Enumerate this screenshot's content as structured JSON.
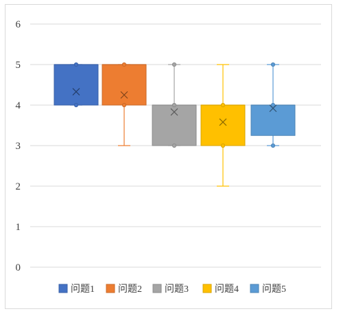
{
  "chart_data": {
    "type": "box",
    "title": "",
    "xlabel": "",
    "ylabel": "",
    "ylim": [
      0,
      6
    ],
    "yticks": [
      "0",
      "1",
      "2",
      "3",
      "4",
      "5",
      "6"
    ],
    "grid": true,
    "legend_position": "bottom",
    "series": [
      {
        "name": "问题1",
        "color": "#4472C4",
        "min": 4,
        "q1": 4,
        "median": 5,
        "q3": 5,
        "max": 5,
        "mean": 4.33,
        "points": [
          4,
          5
        ]
      },
      {
        "name": "问题2",
        "color": "#ED7D31",
        "min": 3,
        "q1": 4,
        "median": 5,
        "q3": 5,
        "max": 5,
        "mean": 4.25,
        "points": [
          4,
          5
        ]
      },
      {
        "name": "问题3",
        "color": "#A5A5A5",
        "min": 3,
        "q1": 3,
        "median": 4,
        "q3": 4,
        "max": 5,
        "mean": 3.83,
        "points": [
          3,
          4,
          5
        ]
      },
      {
        "name": "问题4",
        "color": "#FFC000",
        "min": 2,
        "q1": 3,
        "median": 4,
        "q3": 4,
        "max": 5,
        "mean": 3.58,
        "points": [
          3,
          4
        ]
      },
      {
        "name": "问题5",
        "color": "#5B9BD5",
        "min": 3,
        "q1": 3.25,
        "median": 4,
        "q3": 4,
        "max": 5,
        "mean": 3.92,
        "points": [
          3,
          4,
          5
        ]
      }
    ]
  }
}
